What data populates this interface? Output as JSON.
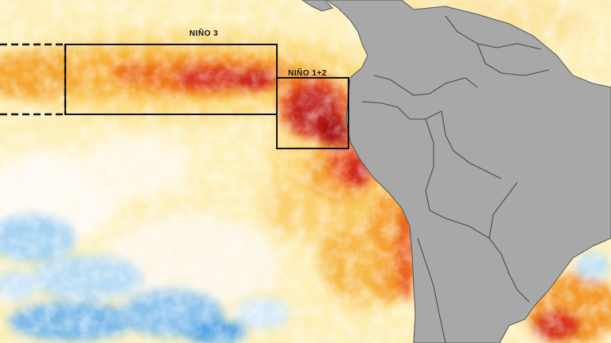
{
  "map": {
    "type": "sea-surface-temperature-anomaly",
    "colors": {
      "ocean_base": "#fdefb8",
      "warm_light": "#fbd878",
      "warm": "#f7b23a",
      "hot": "#f07a1c",
      "very_hot": "#d8321a",
      "extreme": "#a5100e",
      "cool_light": "#eef6ff",
      "cool": "#a9d4f2",
      "cold": "#5aa8e6",
      "land": "#a8a8a8",
      "border": "#4a4a4a",
      "box_outline": "#111111"
    },
    "regions": [
      {
        "id": "nino3",
        "label": "NIÑO 3"
      },
      {
        "id": "nino12",
        "label": "NIÑO 1+2"
      }
    ]
  }
}
